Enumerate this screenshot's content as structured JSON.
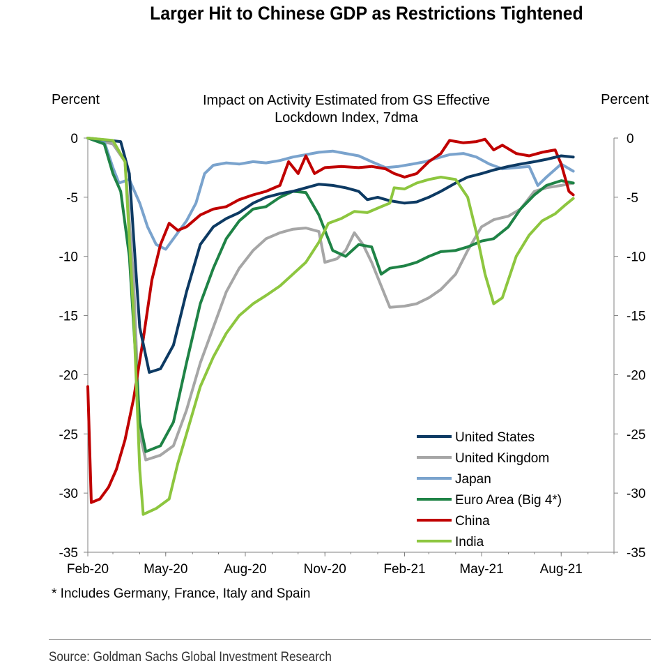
{
  "title": "Larger Hit to Chinese GDP as Restrictions Tightened",
  "footnote": "* Includes Germany, France, Italy and Spain",
  "source": "Source: Goldman Sachs Global Investment Research",
  "chart_data": {
    "type": "line",
    "subtitle_lines": [
      "Impact on Activity Estimated from GS Effective",
      "Lockdown Index, 7dma"
    ],
    "ylabel_left": "Percent",
    "ylabel_right": "Percent",
    "ylim": [
      -35,
      0
    ],
    "yticks": [
      0,
      -5,
      -10,
      -15,
      -20,
      -25,
      -30,
      -35
    ],
    "ytick_labels": [
      "0",
      "-5",
      "-10",
      "-15",
      "-20",
      "-25",
      "-30",
      "-35"
    ],
    "xlim": [
      "2020-02-01",
      "2021-10-01"
    ],
    "xticks": [
      {
        "date": "2020-02-01",
        "label": "Feb-20"
      },
      {
        "date": "2020-05-01",
        "label": "May-20"
      },
      {
        "date": "2020-08-01",
        "label": "Aug-20"
      },
      {
        "date": "2020-11-01",
        "label": "Nov-20"
      },
      {
        "date": "2021-02-01",
        "label": "Feb-21"
      },
      {
        "date": "2021-05-01",
        "label": "May-21"
      },
      {
        "date": "2021-08-01",
        "label": "Aug-21"
      }
    ],
    "grid": false,
    "legend_position": "bottom-right",
    "series": [
      {
        "name": "United States",
        "color": "#0d3a63",
        "points": [
          [
            "2020-02-01",
            0
          ],
          [
            "2020-03-10",
            -0.3
          ],
          [
            "2020-03-20",
            -3
          ],
          [
            "2020-04-01",
            -16
          ],
          [
            "2020-04-12",
            -19.8
          ],
          [
            "2020-04-25",
            -19.5
          ],
          [
            "2020-05-10",
            -17.5
          ],
          [
            "2020-05-25",
            -13
          ],
          [
            "2020-06-10",
            -9
          ],
          [
            "2020-06-25",
            -7.5
          ],
          [
            "2020-07-10",
            -6.8
          ],
          [
            "2020-07-25",
            -6.3
          ],
          [
            "2020-08-10",
            -5.5
          ],
          [
            "2020-08-25",
            -5.0
          ],
          [
            "2020-09-10",
            -4.7
          ],
          [
            "2020-09-25",
            -4.5
          ],
          [
            "2020-10-10",
            -4.2
          ],
          [
            "2020-10-25",
            -3.9
          ],
          [
            "2020-11-10",
            -4.0
          ],
          [
            "2020-11-25",
            -4.2
          ],
          [
            "2020-12-10",
            -4.5
          ],
          [
            "2020-12-20",
            -5.2
          ],
          [
            "2021-01-01",
            -5.0
          ],
          [
            "2021-01-15",
            -5.3
          ],
          [
            "2021-02-01",
            -5.5
          ],
          [
            "2021-02-15",
            -5.4
          ],
          [
            "2021-03-01",
            -5.0
          ],
          [
            "2021-03-15",
            -4.5
          ],
          [
            "2021-04-01",
            -3.8
          ],
          [
            "2021-04-15",
            -3.3
          ],
          [
            "2021-05-01",
            -3.0
          ],
          [
            "2021-05-15",
            -2.7
          ],
          [
            "2021-06-01",
            -2.4
          ],
          [
            "2021-06-15",
            -2.2
          ],
          [
            "2021-07-01",
            -2.0
          ],
          [
            "2021-07-15",
            -1.8
          ],
          [
            "2021-08-01",
            -1.5
          ],
          [
            "2021-08-15",
            -1.6
          ]
        ]
      },
      {
        "name": "United Kingdom",
        "color": "#a6a6a6",
        "points": [
          [
            "2020-02-01",
            0
          ],
          [
            "2020-03-01",
            -0.5
          ],
          [
            "2020-03-15",
            -2
          ],
          [
            "2020-03-25",
            -12
          ],
          [
            "2020-04-01",
            -25
          ],
          [
            "2020-04-08",
            -27.2
          ],
          [
            "2020-04-25",
            -26.8
          ],
          [
            "2020-05-10",
            -26
          ],
          [
            "2020-05-25",
            -23
          ],
          [
            "2020-06-10",
            -19
          ],
          [
            "2020-06-25",
            -16
          ],
          [
            "2020-07-10",
            -13
          ],
          [
            "2020-07-25",
            -11
          ],
          [
            "2020-08-10",
            -9.5
          ],
          [
            "2020-08-25",
            -8.5
          ],
          [
            "2020-09-10",
            -8.0
          ],
          [
            "2020-09-25",
            -7.7
          ],
          [
            "2020-10-10",
            -7.6
          ],
          [
            "2020-10-25",
            -7.9
          ],
          [
            "2020-11-01",
            -10.5
          ],
          [
            "2020-11-15",
            -10.2
          ],
          [
            "2020-11-25",
            -9.5
          ],
          [
            "2020-12-05",
            -8.0
          ],
          [
            "2020-12-15",
            -9.0
          ],
          [
            "2020-12-25",
            -10.5
          ],
          [
            "2021-01-05",
            -12.5
          ],
          [
            "2021-01-15",
            -14.3
          ],
          [
            "2021-02-01",
            -14.2
          ],
          [
            "2021-02-15",
            -14.0
          ],
          [
            "2021-03-01",
            -13.5
          ],
          [
            "2021-03-15",
            -12.8
          ],
          [
            "2021-04-01",
            -11.5
          ],
          [
            "2021-04-15",
            -9.5
          ],
          [
            "2021-05-01",
            -7.5
          ],
          [
            "2021-05-15",
            -6.9
          ],
          [
            "2021-06-01",
            -6.6
          ],
          [
            "2021-06-15",
            -6.0
          ],
          [
            "2021-07-01",
            -4.5
          ],
          [
            "2021-07-15",
            -4.2
          ],
          [
            "2021-08-01",
            -4.0
          ],
          [
            "2021-08-15",
            -3.8
          ]
        ]
      },
      {
        "name": "Japan",
        "color": "#7aa3cd",
        "points": [
          [
            "2020-02-01",
            0
          ],
          [
            "2020-02-20",
            -0.3
          ],
          [
            "2020-03-01",
            -2.5
          ],
          [
            "2020-03-08",
            -3.8
          ],
          [
            "2020-03-20",
            -3.5
          ],
          [
            "2020-04-01",
            -5.5
          ],
          [
            "2020-04-10",
            -7.5
          ],
          [
            "2020-04-20",
            -9.0
          ],
          [
            "2020-05-01",
            -9.4
          ],
          [
            "2020-05-15",
            -8.0
          ],
          [
            "2020-05-25",
            -7.0
          ],
          [
            "2020-06-05",
            -5.5
          ],
          [
            "2020-06-15",
            -3.0
          ],
          [
            "2020-06-25",
            -2.3
          ],
          [
            "2020-07-10",
            -2.1
          ],
          [
            "2020-07-25",
            -2.2
          ],
          [
            "2020-08-10",
            -2.0
          ],
          [
            "2020-08-25",
            -2.1
          ],
          [
            "2020-09-10",
            -1.9
          ],
          [
            "2020-09-25",
            -1.6
          ],
          [
            "2020-10-10",
            -1.4
          ],
          [
            "2020-10-25",
            -1.2
          ],
          [
            "2020-11-10",
            -1.1
          ],
          [
            "2020-11-25",
            -1.3
          ],
          [
            "2020-12-10",
            -1.5
          ],
          [
            "2020-12-25",
            -2.0
          ],
          [
            "2021-01-10",
            -2.5
          ],
          [
            "2021-01-25",
            -2.4
          ],
          [
            "2021-02-10",
            -2.2
          ],
          [
            "2021-02-25",
            -2.0
          ],
          [
            "2021-03-10",
            -1.7
          ],
          [
            "2021-03-25",
            -1.4
          ],
          [
            "2021-04-10",
            -1.3
          ],
          [
            "2021-04-25",
            -1.6
          ],
          [
            "2021-05-10",
            -2.2
          ],
          [
            "2021-05-25",
            -2.6
          ],
          [
            "2021-06-10",
            -2.5
          ],
          [
            "2021-06-25",
            -2.4
          ],
          [
            "2021-07-05",
            -4.0
          ],
          [
            "2021-07-15",
            -3.3
          ],
          [
            "2021-08-01",
            -2.2
          ],
          [
            "2021-08-15",
            -2.8
          ]
        ]
      },
      {
        "name": "Euro Area (Big 4*)",
        "color": "#1f8346",
        "points": [
          [
            "2020-02-01",
            0
          ],
          [
            "2020-02-20",
            -0.5
          ],
          [
            "2020-03-01",
            -3
          ],
          [
            "2020-03-10",
            -4.5
          ],
          [
            "2020-03-20",
            -10
          ],
          [
            "2020-04-01",
            -24
          ],
          [
            "2020-04-08",
            -26.5
          ],
          [
            "2020-04-25",
            -26.0
          ],
          [
            "2020-05-10",
            -24
          ],
          [
            "2020-05-25",
            -19
          ],
          [
            "2020-06-10",
            -14
          ],
          [
            "2020-06-25",
            -11
          ],
          [
            "2020-07-10",
            -8.5
          ],
          [
            "2020-07-25",
            -7.0
          ],
          [
            "2020-08-10",
            -6.0
          ],
          [
            "2020-08-25",
            -5.8
          ],
          [
            "2020-09-10",
            -5.0
          ],
          [
            "2020-09-25",
            -4.5
          ],
          [
            "2020-10-10",
            -4.6
          ],
          [
            "2020-10-25",
            -6.5
          ],
          [
            "2020-11-10",
            -9.5
          ],
          [
            "2020-11-25",
            -10.0
          ],
          [
            "2020-12-10",
            -9.0
          ],
          [
            "2020-12-25",
            -9.2
          ],
          [
            "2021-01-05",
            -11.5
          ],
          [
            "2021-01-15",
            -11.0
          ],
          [
            "2021-02-01",
            -10.8
          ],
          [
            "2021-02-15",
            -10.5
          ],
          [
            "2021-03-01",
            -10.0
          ],
          [
            "2021-03-15",
            -9.6
          ],
          [
            "2021-04-01",
            -9.5
          ],
          [
            "2021-04-15",
            -9.2
          ],
          [
            "2021-05-01",
            -8.7
          ],
          [
            "2021-05-15",
            -8.5
          ],
          [
            "2021-06-01",
            -7.5
          ],
          [
            "2021-06-15",
            -6.0
          ],
          [
            "2021-07-01",
            -4.8
          ],
          [
            "2021-07-15",
            -4.0
          ],
          [
            "2021-08-01",
            -3.6
          ],
          [
            "2021-08-15",
            -3.8
          ]
        ]
      },
      {
        "name": "China",
        "color": "#c00000",
        "points": [
          [
            "2020-02-01",
            -21
          ],
          [
            "2020-02-05",
            -30.8
          ],
          [
            "2020-02-15",
            -30.5
          ],
          [
            "2020-02-25",
            -29.5
          ],
          [
            "2020-03-05",
            -28.0
          ],
          [
            "2020-03-15",
            -25.5
          ],
          [
            "2020-03-25",
            -22.0
          ],
          [
            "2020-04-05",
            -17.0
          ],
          [
            "2020-04-15",
            -12.0
          ],
          [
            "2020-04-25",
            -9.0
          ],
          [
            "2020-05-05",
            -7.2
          ],
          [
            "2020-05-15",
            -7.8
          ],
          [
            "2020-05-25",
            -7.5
          ],
          [
            "2020-06-10",
            -6.5
          ],
          [
            "2020-06-25",
            -6.0
          ],
          [
            "2020-07-10",
            -5.8
          ],
          [
            "2020-07-25",
            -5.2
          ],
          [
            "2020-08-10",
            -4.8
          ],
          [
            "2020-08-25",
            -4.5
          ],
          [
            "2020-09-10",
            -4.0
          ],
          [
            "2020-09-20",
            -2.0
          ],
          [
            "2020-10-01",
            -3.0
          ],
          [
            "2020-10-10",
            -1.5
          ],
          [
            "2020-10-20",
            -3.0
          ],
          [
            "2020-11-01",
            -2.5
          ],
          [
            "2020-11-20",
            -2.4
          ],
          [
            "2020-12-10",
            -2.5
          ],
          [
            "2020-12-25",
            -2.4
          ],
          [
            "2021-01-10",
            -2.6
          ],
          [
            "2021-01-20",
            -3.0
          ],
          [
            "2021-02-01",
            -3.3
          ],
          [
            "2021-02-15",
            -3.0
          ],
          [
            "2021-03-01",
            -2.0
          ],
          [
            "2021-03-15",
            -1.3
          ],
          [
            "2021-03-25",
            -0.2
          ],
          [
            "2021-04-10",
            -0.4
          ],
          [
            "2021-04-25",
            -0.3
          ],
          [
            "2021-05-05",
            -0.1
          ],
          [
            "2021-05-15",
            -1.0
          ],
          [
            "2021-05-25",
            -0.6
          ],
          [
            "2021-06-10",
            -1.3
          ],
          [
            "2021-06-25",
            -1.5
          ],
          [
            "2021-07-10",
            -1.2
          ],
          [
            "2021-07-25",
            -1.0
          ],
          [
            "2021-08-01",
            -2.2
          ],
          [
            "2021-08-10",
            -4.5
          ],
          [
            "2021-08-15",
            -4.8
          ]
        ]
      },
      {
        "name": "India",
        "color": "#8dc63f",
        "points": [
          [
            "2020-02-01",
            0
          ],
          [
            "2020-03-01",
            -0.2
          ],
          [
            "2020-03-15",
            -2.0
          ],
          [
            "2020-03-25",
            -15.0
          ],
          [
            "2020-04-01",
            -28.0
          ],
          [
            "2020-04-05",
            -31.8
          ],
          [
            "2020-04-20",
            -31.3
          ],
          [
            "2020-05-05",
            -30.5
          ],
          [
            "2020-05-15",
            -27.5
          ],
          [
            "2020-05-25",
            -25.0
          ],
          [
            "2020-06-10",
            -21.0
          ],
          [
            "2020-06-25",
            -18.5
          ],
          [
            "2020-07-10",
            -16.5
          ],
          [
            "2020-07-25",
            -15.0
          ],
          [
            "2020-08-10",
            -14.0
          ],
          [
            "2020-08-25",
            -13.3
          ],
          [
            "2020-09-10",
            -12.5
          ],
          [
            "2020-09-25",
            -11.5
          ],
          [
            "2020-10-10",
            -10.5
          ],
          [
            "2020-10-25",
            -8.8
          ],
          [
            "2020-11-05",
            -7.2
          ],
          [
            "2020-11-20",
            -6.8
          ],
          [
            "2020-12-05",
            -6.2
          ],
          [
            "2020-12-20",
            -6.3
          ],
          [
            "2021-01-05",
            -5.8
          ],
          [
            "2021-01-15",
            -5.5
          ],
          [
            "2021-01-20",
            -4.2
          ],
          [
            "2021-02-01",
            -4.3
          ],
          [
            "2021-02-15",
            -3.8
          ],
          [
            "2021-03-01",
            -3.5
          ],
          [
            "2021-03-15",
            -3.3
          ],
          [
            "2021-04-01",
            -3.5
          ],
          [
            "2021-04-15",
            -5.0
          ],
          [
            "2021-04-25",
            -8.0
          ],
          [
            "2021-05-05",
            -11.5
          ],
          [
            "2021-05-15",
            -14.0
          ],
          [
            "2021-05-25",
            -13.5
          ],
          [
            "2021-06-10",
            -10.0
          ],
          [
            "2021-06-25",
            -8.2
          ],
          [
            "2021-07-10",
            -7.0
          ],
          [
            "2021-07-25",
            -6.4
          ],
          [
            "2021-08-05",
            -5.7
          ],
          [
            "2021-08-15",
            -5.1
          ]
        ]
      }
    ]
  }
}
